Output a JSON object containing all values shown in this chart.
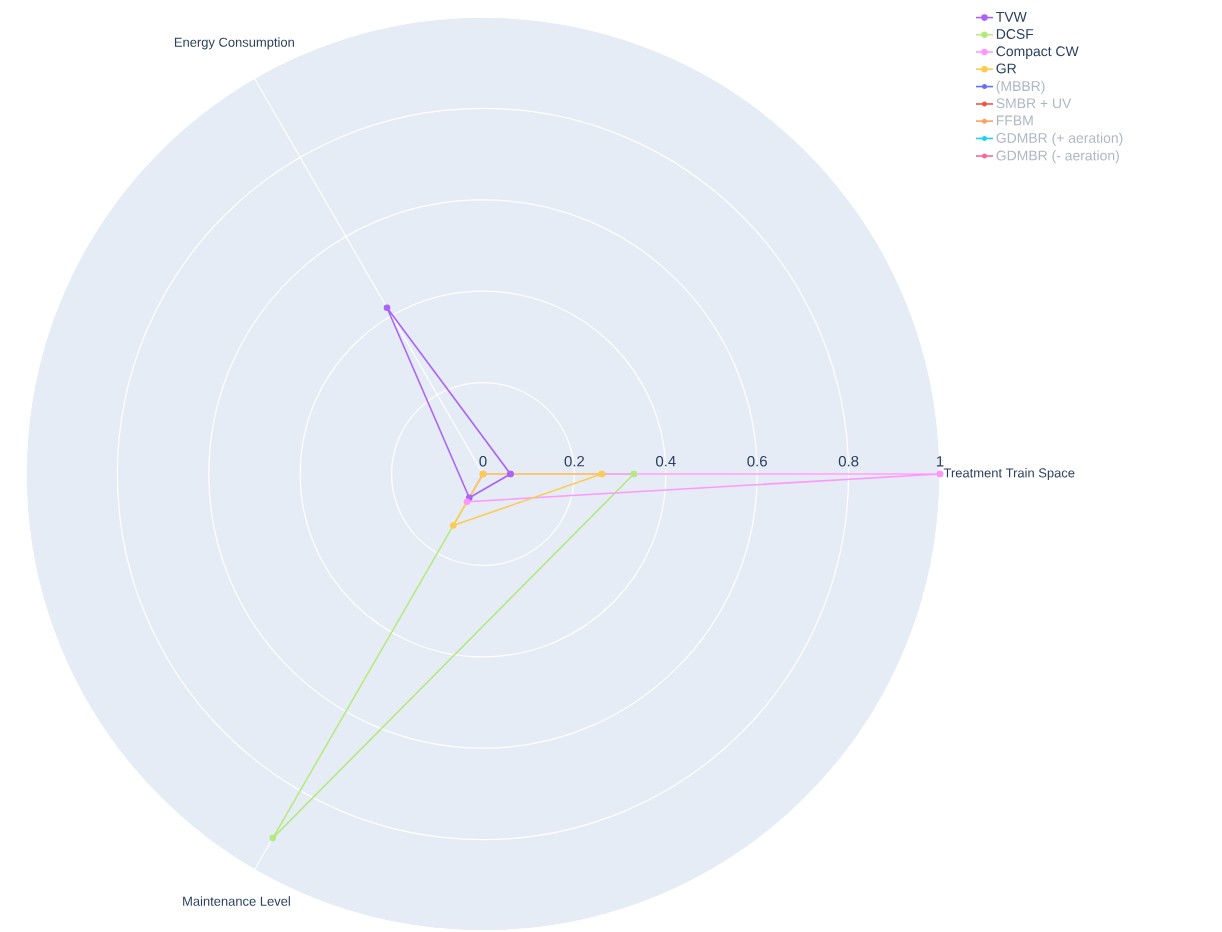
{
  "chart_data": {
    "type": "radar",
    "categories": [
      "Treatment Train Space",
      "Maintenance Level",
      "Energy Consumption"
    ],
    "ylim": [
      0,
      1
    ],
    "yticks": [
      0,
      0.2,
      0.4,
      0.6,
      0.8,
      1
    ],
    "grid": true,
    "legend": "top right",
    "marker": "circle",
    "series": [
      {
        "name": "TVW",
        "color": "#ab63fa",
        "values": [
          0.06,
          0.06,
          0.42
        ]
      },
      {
        "name": "DCSF",
        "color": "#b6e880",
        "values": [
          0.33,
          0.92,
          0
        ]
      },
      {
        "name": "Compact CW",
        "color": "#ff97ff",
        "values": [
          1,
          0.07,
          0
        ]
      },
      {
        "name": "GR",
        "color": "#fecb52",
        "values": [
          0.26,
          0.13,
          0
        ]
      },
      {
        "name": "(MBBR)",
        "color": "#636efa",
        "values": [
          null,
          null,
          null
        ]
      },
      {
        "name": "SMBR + UV",
        "color": "#ef553b",
        "values": [
          null,
          null,
          null
        ]
      },
      {
        "name": "FFBM",
        "color": "#ffa15a",
        "values": [
          null,
          null,
          null
        ]
      },
      {
        "name": "GDMBR (+ aeration)",
        "color": "#19d3f3",
        "values": [
          null,
          null,
          null
        ]
      },
      {
        "name": "GDMBR (- aeration)",
        "color": "#ff6692",
        "values": [
          null,
          null,
          null
        ]
      }
    ]
  }
}
